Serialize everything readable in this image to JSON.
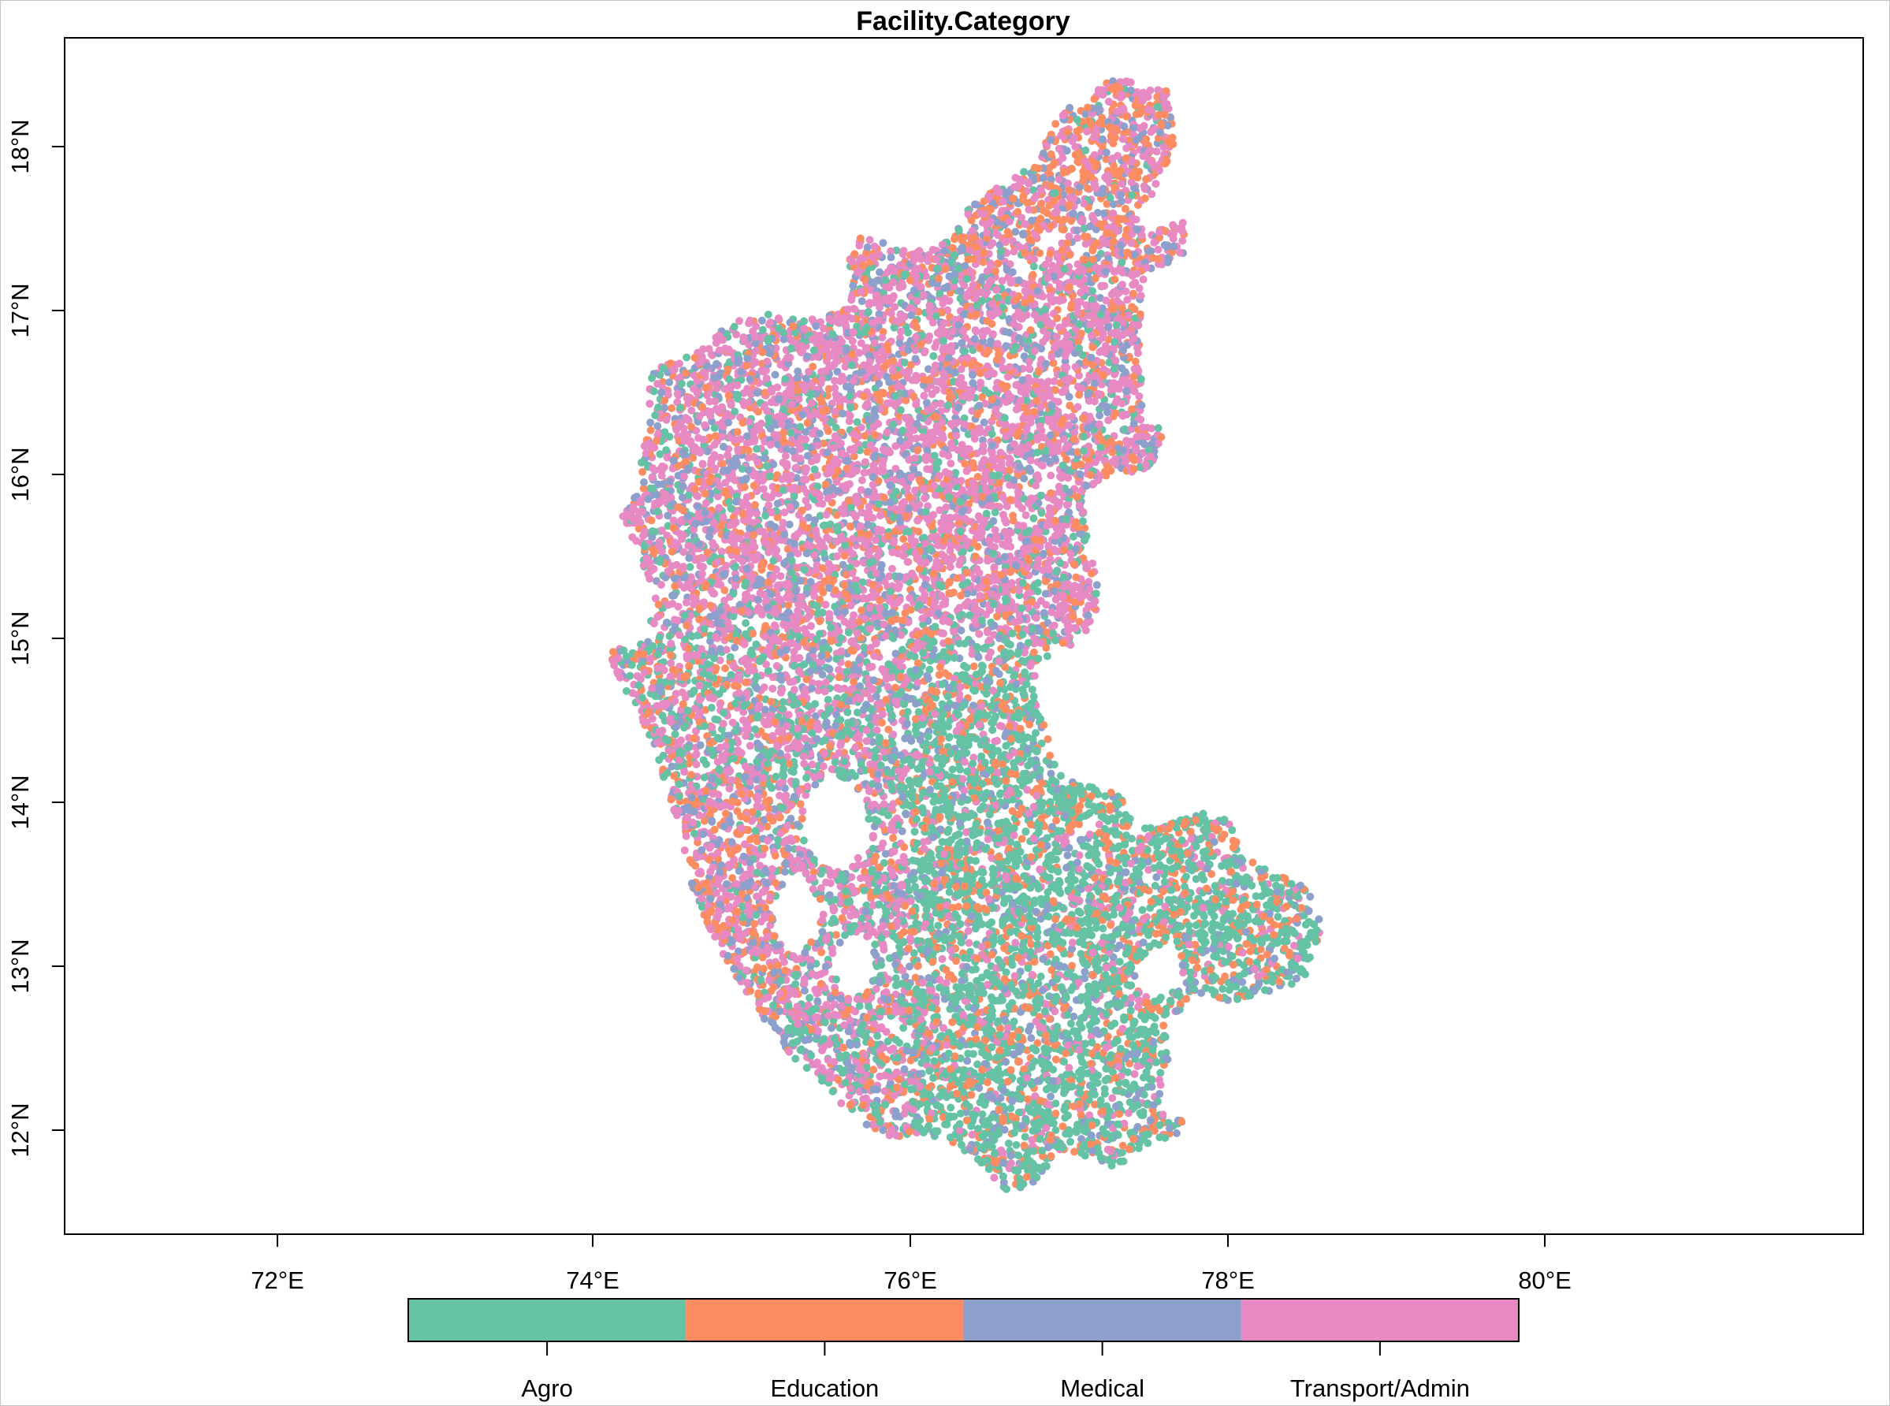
{
  "title": "Facility.Category",
  "map": {
    "x_ticks": [
      "72°E",
      "74°E",
      "76°E",
      "78°E",
      "80°E"
    ],
    "y_ticks": [
      "12°N",
      "13°N",
      "14°N",
      "15°N",
      "16°N",
      "17°N",
      "18°N"
    ]
  },
  "legend": [
    {
      "label": "Agro",
      "color": "#66c2a5"
    },
    {
      "label": "Education",
      "color": "#fc8d62"
    },
    {
      "label": "Medical",
      "color": "#8da0cb"
    },
    {
      "label": "Transport/Admin",
      "color": "#e78ac3"
    }
  ]
}
